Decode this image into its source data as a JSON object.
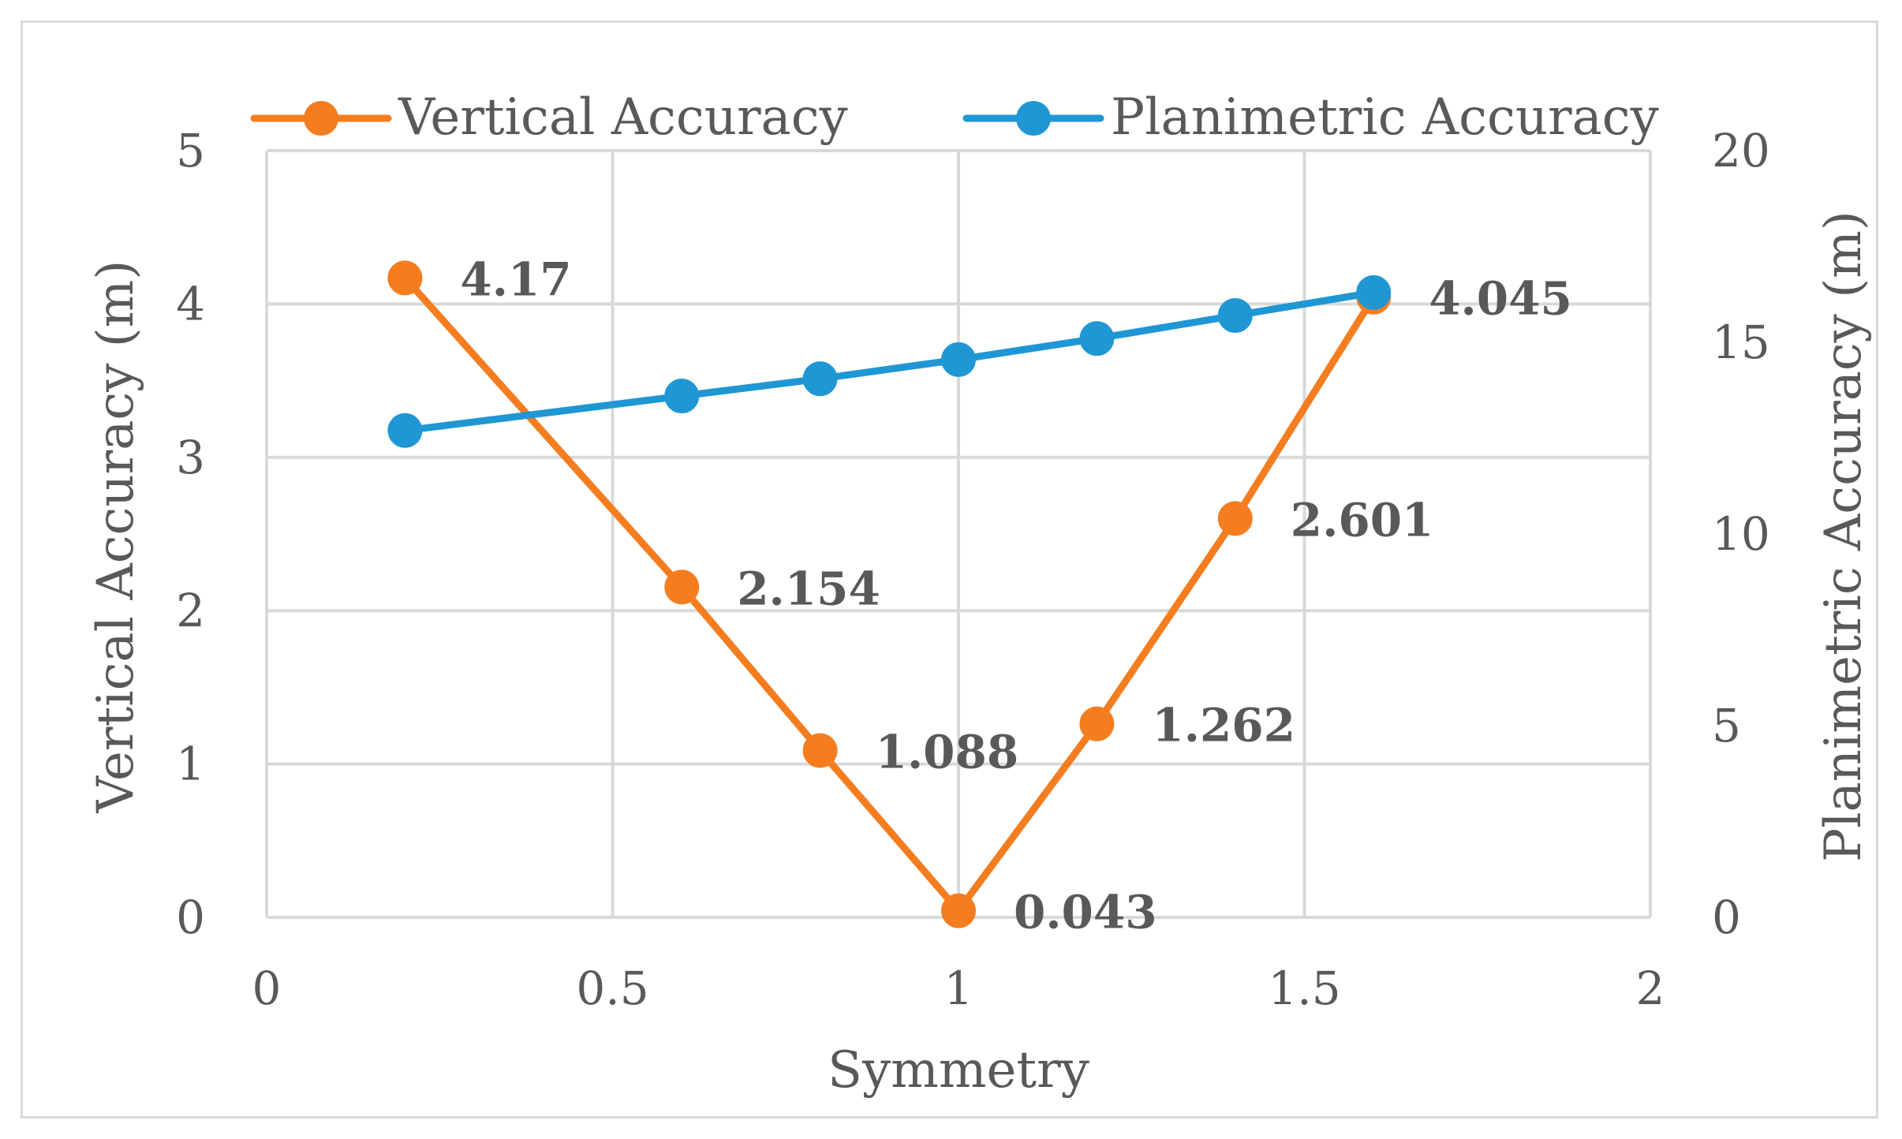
{
  "chart_data": {
    "type": "line",
    "xlabel": "Symmetry",
    "ylabel": "Vertical Accuracy  (m)",
    "y2label": "Planimetric Accuracy  (m)",
    "xlim": [
      0,
      2
    ],
    "ylim": [
      0,
      5
    ],
    "y2lim": [
      0,
      20
    ],
    "x_ticks": [
      "0",
      "0.5",
      "1",
      "1.5",
      "2"
    ],
    "y_ticks": [
      "0",
      "1",
      "2",
      "3",
      "4",
      "5"
    ],
    "y2_ticks": [
      "0",
      "5",
      "10",
      "15",
      "20"
    ],
    "grid": true,
    "legend_position": "top",
    "series": [
      {
        "name": "Vertical Accuracy",
        "axis": "left",
        "color": "#f47d20",
        "x": [
          0.2,
          0.6,
          0.8,
          1.0,
          1.2,
          1.4,
          1.6
        ],
        "y": [
          4.17,
          2.154,
          1.088,
          0.043,
          1.262,
          2.601,
          4.045
        ],
        "labels": [
          "4.17",
          "2.154",
          "1.088",
          "0.043",
          "1.262",
          "2.601",
          "4.045"
        ]
      },
      {
        "name": "Planimetric Accuracy",
        "axis": "right",
        "color": "#1f97d4",
        "x": [
          0.2,
          0.6,
          0.8,
          1.0,
          1.2,
          1.4,
          1.6
        ],
        "y": [
          12.7,
          13.6,
          14.05,
          14.55,
          15.1,
          15.7,
          16.3
        ]
      }
    ]
  }
}
